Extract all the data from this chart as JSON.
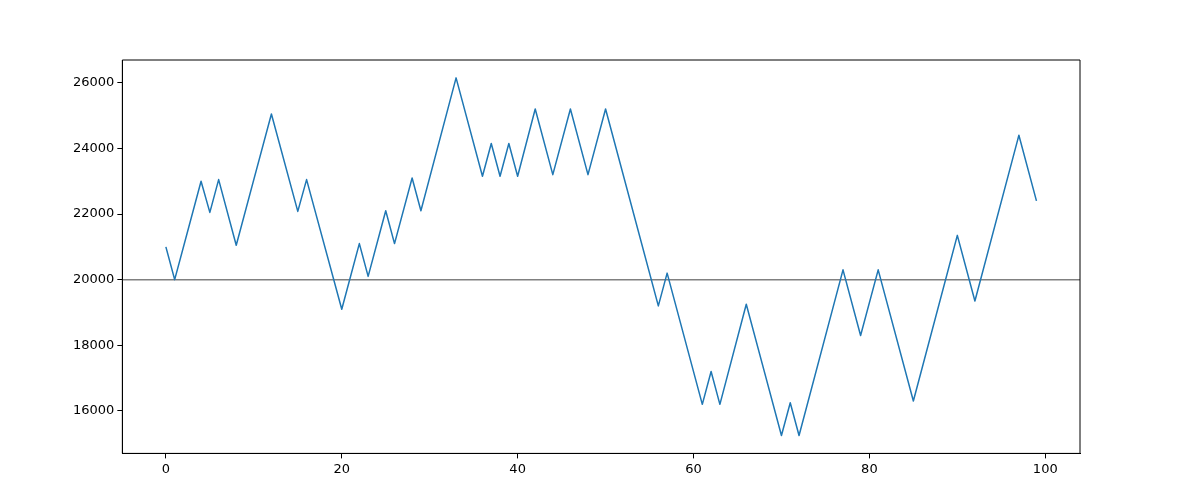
{
  "chart_data": {
    "type": "line",
    "xlim": [
      -4.95,
      103.95
    ],
    "xticks": [
      0,
      20,
      40,
      60,
      80,
      100
    ],
    "ylim": [
      14705,
      26695
    ],
    "yticks": [
      16000,
      18000,
      20000,
      22000,
      24000,
      26000
    ],
    "grid": false,
    "legend": false,
    "marker": "none",
    "line_style": "solid",
    "series": [
      {
        "color": "#1f77b4",
        "x": [
          0,
          1,
          4,
          5,
          6,
          8,
          12,
          15,
          16,
          20,
          22,
          23,
          25,
          26,
          28,
          29,
          33,
          36,
          37,
          38,
          39,
          40,
          42,
          44,
          46,
          48,
          50,
          56,
          57,
          61,
          62,
          63,
          66,
          70,
          71,
          72,
          77,
          79,
          81,
          85,
          90,
          92,
          97,
          99
        ],
        "values": [
          21000,
          20000,
          23000,
          22050,
          23050,
          21050,
          25050,
          22080,
          23050,
          19100,
          21100,
          20100,
          22100,
          21100,
          23100,
          22100,
          26150,
          23150,
          24150,
          23150,
          24150,
          23150,
          25200,
          23200,
          25200,
          23200,
          25200,
          19200,
          20200,
          16200,
          17200,
          16200,
          19250,
          15250,
          16250,
          15250,
          20300,
          18300,
          20300,
          16300,
          21350,
          19350,
          24400,
          22400
        ]
      }
    ],
    "ref_lines": [
      {
        "axis": "y",
        "value": 20000,
        "color": "#808080",
        "line_style": "solid"
      }
    ]
  }
}
